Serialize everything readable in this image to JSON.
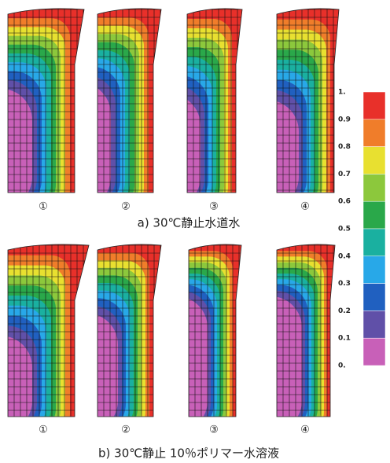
{
  "figure": {
    "rows": [
      {
        "caption": "a) 30℃静止水道水",
        "labels": [
          "①",
          "②",
          "③",
          "④"
        ]
      },
      {
        "caption": "b) 30℃静止 10％ポリマー水溶液",
        "labels": [
          "①",
          "②",
          "③",
          "④"
        ]
      }
    ],
    "colorbar": {
      "labels": [
        "1.",
        "0.9",
        "0.8",
        "0.7",
        "0.6",
        "0.5",
        "0.4",
        "0.3",
        "0.2",
        "0.1",
        "0."
      ]
    }
  }
}
